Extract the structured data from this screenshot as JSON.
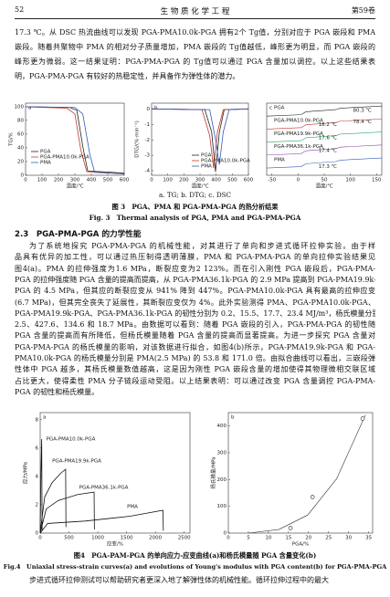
{
  "header": {
    "page": "52",
    "journal": "生 物 质 化 学 工 程",
    "volume": "第59卷"
  },
  "paragraph1": [
    "17.3 ℃。从 DSC 热流曲线可以发现 PGA-PMA10.0k-PGA 拥有2个 Tg值，分别对应于 PGA 嵌段和 PMA",
    "嵌段。随着共聚物中 PMA 的相对分子质量增加，PMA 嵌段的 Tg值越低，峰形更为明显，而 PGA 嵌段的",
    "峰形更为微弱。这一结果证明：PGA-PMA-PGA 的 Tg值可以通过 PGA 含量加以调控。以上这些结果表",
    "明，PGA-PMA-PGA 有较好的热稳定性，并具备作为弹性体的潜力。"
  ],
  "figure3": {
    "panels": [
      {
        "letter": "a",
        "x_label": "温度/℃",
        "y_label": "TG/%",
        "xlim": [
          0,
          600
        ],
        "xticks": [
          0,
          100,
          200,
          300,
          400,
          500,
          600
        ],
        "ylim": [
          0,
          105
        ],
        "yticks": [
          0,
          20,
          40,
          60,
          80,
          100
        ],
        "legend": [
          "PGA",
          "PGA-PMA10.0k-PGA",
          "PMA"
        ]
      },
      {
        "letter": "b",
        "x_label": "温度/℃",
        "y_label": "DTG/(%·min⁻¹)",
        "xlim": [
          0,
          600
        ],
        "xticks": [
          0,
          100,
          200,
          300,
          400,
          500,
          600
        ],
        "ylim": [
          -4.3,
          0.4
        ],
        "yticks": [
          0,
          -1,
          -2,
          -3,
          -4
        ],
        "legend": [
          "PGA",
          "PGA-PMA10.0k-PGA",
          "PMA"
        ]
      },
      {
        "letter": "c",
        "x_label": "温度/℃",
        "xlim": [
          -60,
          160
        ],
        "xticks": [
          -50,
          0,
          50,
          100,
          150
        ],
        "curve_labels": [
          "PGA",
          "PGA-PMA10.0k-PGA",
          "PGA-PMA19.9k-PGA",
          "PGA-PMA36.1k-PGA",
          "PMA"
        ],
        "peak_labels": [
          "80.3 ℃",
          "78.4 ℃",
          "18.2 ℃",
          "17.6 ℃",
          "17.4 ℃",
          "17.3 ℃"
        ]
      }
    ],
    "subcaption": "a. TG; b. DTG; c. DSC",
    "caption_cn": "图 3　PGA、PMA 和 PGA-PMA-PGA 的热分析结果",
    "caption_en": "Fig. 3　Thermal analysis of PGA, PMA and PGA-PMA-PGA"
  },
  "section": "2.3　PGA-PMA-PGA 的力学性能",
  "paragraph2": [
    "为了系统地探究 PGA-PMA-PGA 的机械性能，对其进行了单向和步进式循环拉伸实验。由于样",
    "品具有优异的加工性，可以通过热压制得透明薄膜，PMA 和 PGA-PMA-PGA 的单向拉伸实验结果见",
    "图4(a)。PMA 的拉伸强度为1.6 MPa，断裂应变为2 123%。而在引入刚性 PGA 嵌段后，PGA-PMA-",
    "PGA 的拉伸强度随 PGA 含量的提高而提高，从 PGA-PMA36.1k-PGA 的 2.9 MPa 提高到 PGA-PMA19.9k-",
    "PGA 的 4.5 MPa，但其应的断裂应变从 941% 降到 447%。PGA-PMA10.0k-PGA 具有最高的拉伸应变",
    "(6.7 MPa)，但其完全丧失了延展性，其断裂应变仅为 4%。此外实验测得 PMA、PGA-PMA10.0k-PGA、",
    "PGA-PMA19.9k-PGA、PGA-PMA36.1k-PGA 的韧性分别为 0.2、15.5、17.7、23.4 MJ/m³，杨氏模量分别为",
    "2.5、427.6、134.6 和 18.7 MPa。由数据可以看到：随着 PGA 嵌段的引入，PGA-PMA-PGA 的韧性随",
    "PGA 含量的提高而有所降低，但杨氏模量随着 PGA 含量的提高而显著提高。为进一步探究 PGA 含量对",
    "PGA-PMA-PGA 的杨氏模量的影响，对该数据进行拟合，如图4(b)所示，PGA-PMA19.9k-PGA 和 PGA-",
    "PMA10.0k-PGA 的杨氏模量分别是 PMA(2.5 MPa) 的 53.8 和 171.0 倍。由拟合曲线可以看出，三嵌段弹",
    "性体中 PGA 越多，其杨氏模量数值越高，这是因为刚性 PGA 嵌段含量的增加使得其物理微相交联区域",
    "占比更大，使得柔性 PMA 分子链段运动受阻。以上结果表明：可以通过改变 PGA 含量调控 PGA-PMA-",
    "PGA 的韧性和杨氏模量。"
  ],
  "figure4": {
    "panels": [
      {
        "letter": "a",
        "x_label": "应变/%",
        "y_label": "应力/MPa",
        "xlim": [
          0,
          2600
        ],
        "xticks": [
          0,
          500,
          1000,
          1500,
          2000,
          2500
        ],
        "ylim": [
          0,
          8.5
        ],
        "yticks": [
          0,
          2,
          4,
          6,
          8
        ],
        "curve_labels": [
          "PGA-PMA10.0k-PGA",
          "PGA-PMA19.9k-PGA",
          "PGA-PMA36.1k-PGA",
          "PMA"
        ]
      },
      {
        "letter": "b",
        "x_label": "PGA/%",
        "y_label": "杨氏模量/MPa",
        "xlim": [
          0,
          36
        ],
        "xticks": [
          0,
          5,
          10,
          15,
          20,
          25,
          30,
          35
        ],
        "ylim": [
          0,
          450
        ],
        "yticks": [
          0,
          100,
          200,
          300,
          400
        ],
        "x": [
          15.5,
          21,
          33.5
        ],
        "values": [
          18.7,
          134.6,
          427.6
        ]
      }
    ],
    "caption_cn": "图4　PGA-PAM-PGA 的单向应力-应变曲线(a)和杨氏模量随 PGA 含量变化(b)",
    "caption_en": "Fig.4　Uniaxial stress-strain curves(a) and evolutions of Young's modulus with PGA content(b) for PGA-PMA-PGA"
  },
  "paragraph3": [
    "步进式循环拉伸测试可以帮助研究者更深入地了解弹性体的机械性能。循环拉伸过程中的最大"
  ]
}
